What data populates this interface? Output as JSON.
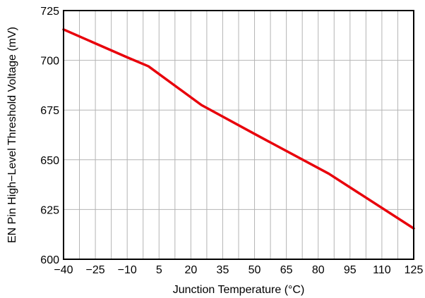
{
  "chart_data": {
    "type": "line",
    "title": "",
    "xlabel": "Junction Temperature (°C)",
    "ylabel": "EN Pin High−Level Threshold Voltage (mV)",
    "xlim": [
      -40,
      125
    ],
    "ylim": [
      600,
      725
    ],
    "xticks": [
      -40,
      -25,
      -10,
      5,
      20,
      35,
      50,
      65,
      80,
      95,
      110,
      125
    ],
    "xtick_labels": [
      "−40",
      "−25",
      "−10",
      "5",
      "20",
      "35",
      "50",
      "65",
      "80",
      "95",
      "110",
      "125"
    ],
    "yticks": [
      600,
      625,
      650,
      675,
      700,
      725
    ],
    "ytick_labels": [
      "600",
      "625",
      "650",
      "675",
      "700",
      "725"
    ],
    "xgrid_extra": [
      -32.5,
      -17.5,
      -2.5,
      12.5,
      27.5,
      42.5,
      57.5,
      72.5,
      87.5,
      102.5,
      117.5
    ],
    "grid": true,
    "legend": false,
    "series": [
      {
        "color": "#e8000b",
        "x": [
          -40,
          -25,
          -10,
          0,
          25,
          50,
          85,
          125
        ],
        "y": [
          715.5,
          708.5,
          701.5,
          697,
          677.5,
          663,
          643,
          615.5
        ]
      }
    ]
  }
}
